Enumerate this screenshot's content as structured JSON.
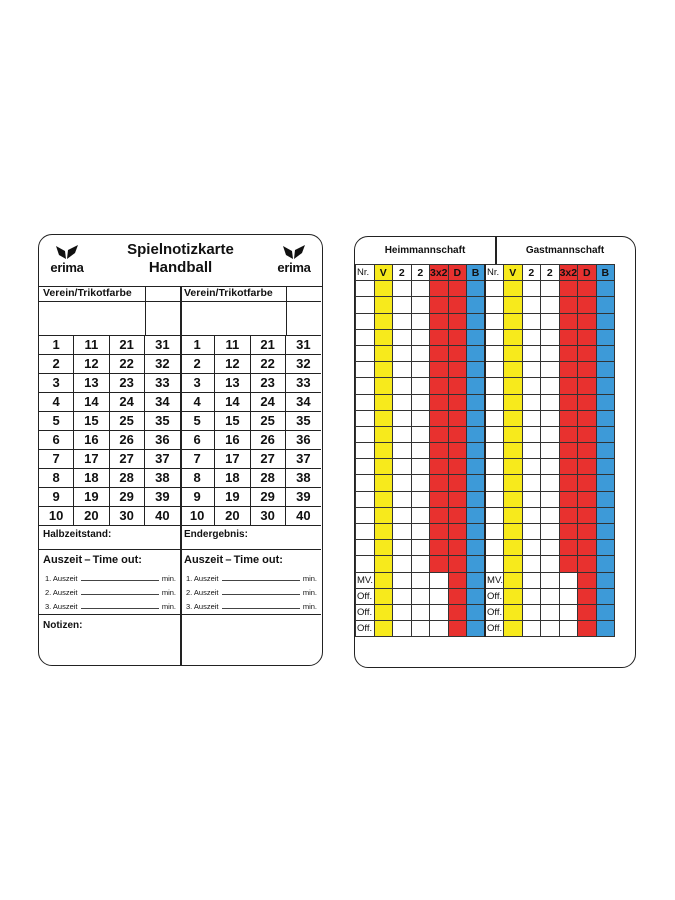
{
  "left_card": {
    "brand": "erima",
    "title_line1": "Spielnotizkarte",
    "title_line2": "Handball",
    "team_label": "Verein/Trikotfarbe",
    "numbers": [
      [
        1,
        11,
        21,
        31
      ],
      [
        2,
        12,
        22,
        32
      ],
      [
        3,
        13,
        23,
        33
      ],
      [
        4,
        14,
        24,
        34
      ],
      [
        5,
        15,
        25,
        35
      ],
      [
        6,
        16,
        26,
        36
      ],
      [
        7,
        17,
        27,
        37
      ],
      [
        8,
        18,
        28,
        38
      ],
      [
        9,
        19,
        29,
        39
      ],
      [
        10,
        20,
        30,
        40
      ]
    ],
    "halftime_label": "Halbzeitstand:",
    "final_label": "Endergebnis:",
    "timeout_title": "Auszeit – Time out:",
    "timeouts": [
      "1. Auszeit",
      "2. Auszeit",
      "3. Auszeit"
    ],
    "min_label": "min.",
    "notes_label": "Notizen:"
  },
  "right_card": {
    "home_title": "Heimmannschaft",
    "guest_title": "Gastmannschaft",
    "columns": [
      "Nr.",
      "V",
      "2",
      "2",
      "3x2",
      "D",
      "B"
    ],
    "player_rows": 18,
    "official_rows": [
      "MV.",
      "Off.",
      "Off.",
      "Off."
    ],
    "colors": {
      "yellow": "#f7ea1c",
      "red": "#e8312f",
      "blue": "#3d9ad8"
    }
  }
}
